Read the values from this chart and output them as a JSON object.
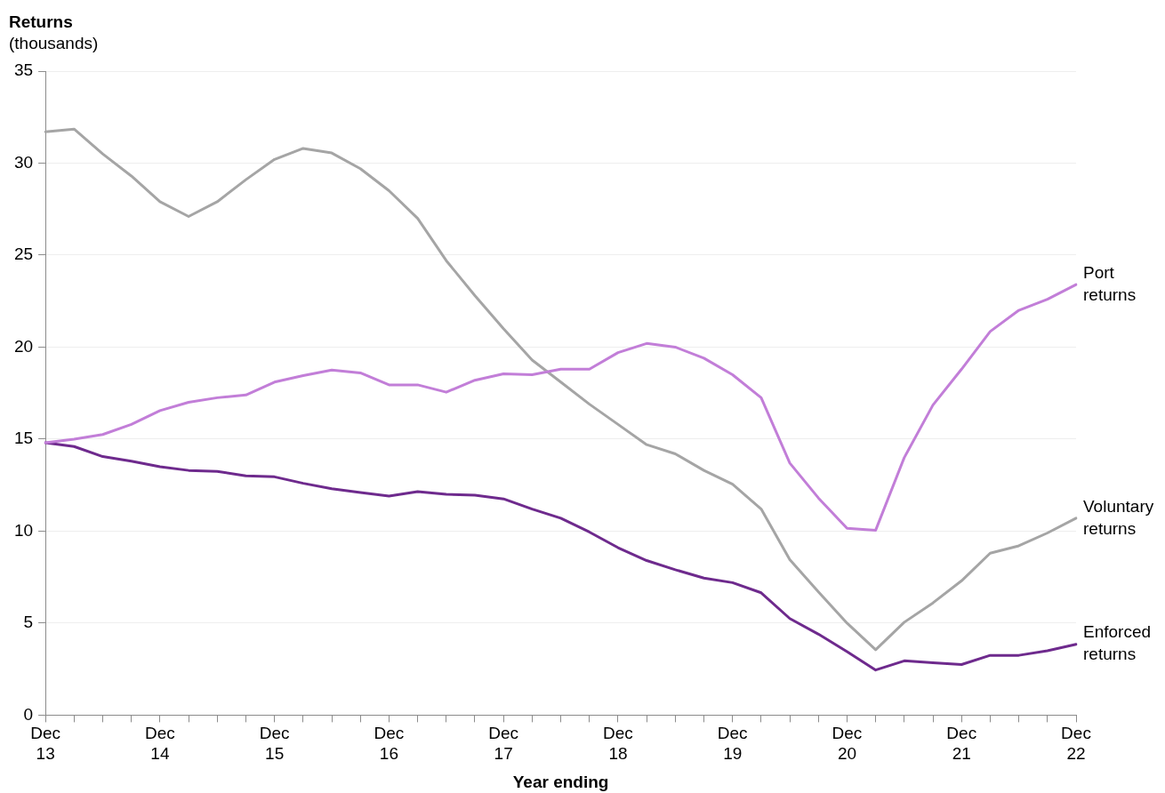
{
  "chart_data": {
    "type": "line",
    "ylabel": "Returns (thousands)",
    "xlabel": "Year ending",
    "categories": [
      "Dec 13",
      null,
      null,
      null,
      "Dec 14",
      null,
      null,
      null,
      "Dec 15",
      null,
      null,
      null,
      "Dec 16",
      null,
      null,
      null,
      "Dec 17",
      null,
      null,
      null,
      "Dec 18",
      null,
      null,
      null,
      "Dec 19",
      null,
      null,
      null,
      "Dec 20",
      null,
      null,
      null,
      "Dec 21",
      null,
      null,
      null,
      "Dec 22"
    ],
    "series": [
      {
        "name": "Port returns",
        "color": "#c27ed8",
        "values": [
          14.8,
          15.0,
          15.25,
          15.8,
          16.55,
          17.0,
          17.25,
          17.4,
          18.1,
          18.45,
          18.75,
          18.6,
          17.95,
          17.95,
          17.55,
          18.2,
          18.55,
          18.5,
          18.8,
          18.8,
          19.7,
          20.2,
          20.0,
          19.4,
          18.5,
          17.25,
          13.7,
          11.8,
          10.15,
          10.05,
          14.0,
          16.85,
          18.8,
          20.85,
          22.0,
          22.6,
          23.4
        ]
      },
      {
        "name": "Voluntary returns",
        "color": "#a5a5a5",
        "values": [
          31.7,
          31.85,
          30.5,
          29.3,
          27.9,
          27.1,
          27.9,
          29.1,
          30.2,
          30.8,
          30.55,
          29.7,
          28.5,
          27.0,
          24.7,
          22.8,
          21.0,
          19.3,
          18.1,
          16.9,
          15.8,
          14.7,
          14.2,
          13.3,
          12.55,
          11.2,
          8.45,
          6.7,
          5.0,
          3.55,
          5.05,
          6.1,
          7.3,
          8.8,
          9.2,
          9.9,
          10.7
        ]
      },
      {
        "name": "Enforced returns",
        "color": "#6e2a8d",
        "values": [
          14.8,
          14.6,
          14.05,
          13.8,
          13.5,
          13.3,
          13.25,
          13.0,
          12.95,
          12.6,
          12.3,
          12.1,
          11.9,
          12.15,
          12.0,
          11.95,
          11.75,
          11.2,
          10.7,
          9.95,
          9.1,
          8.4,
          7.9,
          7.45,
          7.2,
          6.65,
          5.25,
          4.4,
          3.45,
          2.45,
          2.95,
          2.85,
          2.75,
          3.25,
          3.25,
          3.5,
          3.85
        ]
      }
    ],
    "ylim": [
      0,
      35
    ],
    "yticks": [
      0,
      5,
      10,
      15,
      20,
      25,
      30,
      35
    ],
    "grid": "y",
    "legend": false,
    "marker": "none",
    "line_style": "solid"
  }
}
